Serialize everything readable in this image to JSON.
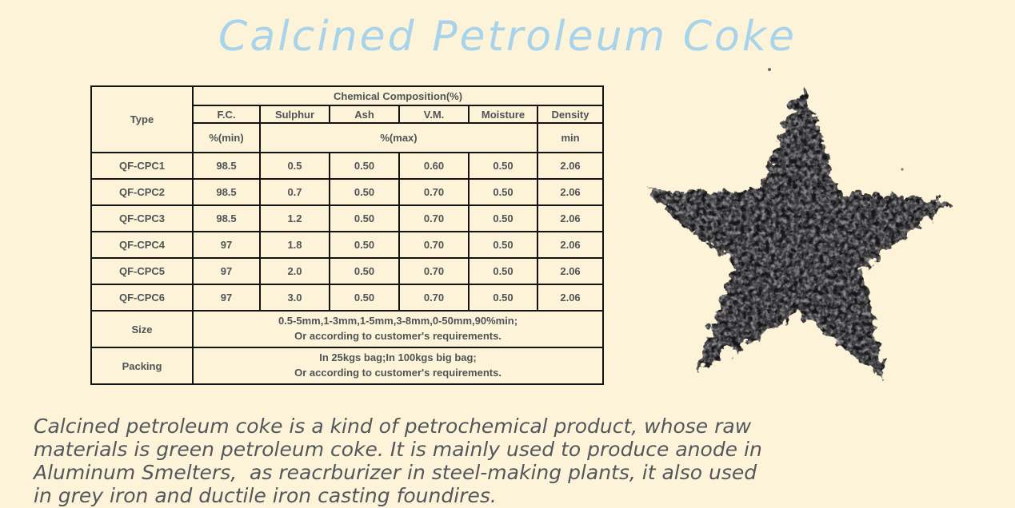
{
  "page": {
    "background_color": "#FCF3D8"
  },
  "title": {
    "text": "Calcined Petroleum Coke",
    "color": "#A7D3EB"
  },
  "table": {
    "border_color": "#131313",
    "text_color": "#4F5456",
    "header": {
      "type_label": "Type",
      "composition_label": "Chemical Composition(%)",
      "columns": [
        "F.C.",
        "Sulphur",
        "Ash",
        "V.M.",
        "Moisture",
        "Density"
      ],
      "unit_min": "%(min)",
      "unit_max": "%(max)",
      "unit_density": "min"
    },
    "rows": [
      {
        "type": "QF-CPC1",
        "values": [
          "98.5",
          "0.5",
          "0.50",
          "0.60",
          "0.50",
          "2.06"
        ]
      },
      {
        "type": "QF-CPC2",
        "values": [
          "98.5",
          "0.7",
          "0.50",
          "0.70",
          "0.50",
          "2.06"
        ]
      },
      {
        "type": "QF-CPC3",
        "values": [
          "98.5",
          "1.2",
          "0.50",
          "0.70",
          "0.50",
          "2.06"
        ]
      },
      {
        "type": "QF-CPC4",
        "values": [
          "97",
          "1.8",
          "0.50",
          "0.70",
          "0.50",
          "2.06"
        ]
      },
      {
        "type": "QF-CPC5",
        "values": [
          "97",
          "2.0",
          "0.50",
          "0.70",
          "0.50",
          "2.06"
        ]
      },
      {
        "type": "QF-CPC6",
        "values": [
          "97",
          "3.0",
          "0.50",
          "0.70",
          "0.50",
          "2.06"
        ]
      }
    ],
    "size": {
      "label": "Size",
      "line1": "0.5-5mm,1-3mm,1-5mm,3-8mm,0-50mm,90%min;",
      "line2": "Or according to customer's requirements."
    },
    "packing": {
      "label": "Packing",
      "line1": "In 25kgs bag;In 100kgs big bag;",
      "line2": "Or according to customer's requirements."
    }
  },
  "description": {
    "text_color": "#54585C",
    "lines": [
      "Calcined petroleum coke is a kind of petrochemical product, whose raw",
      "materials is green petroleum coke. It is mainly used to produce anode in",
      "Aluminum Smelters,  as reacrburizer in steel-making plants, it also used",
      "in grey iron and ductile iron casting foundires."
    ]
  },
  "star_image": {
    "icon": "coke-star-photo",
    "base_color": "#413F43",
    "shape": "five-pointed star of granular coke"
  }
}
